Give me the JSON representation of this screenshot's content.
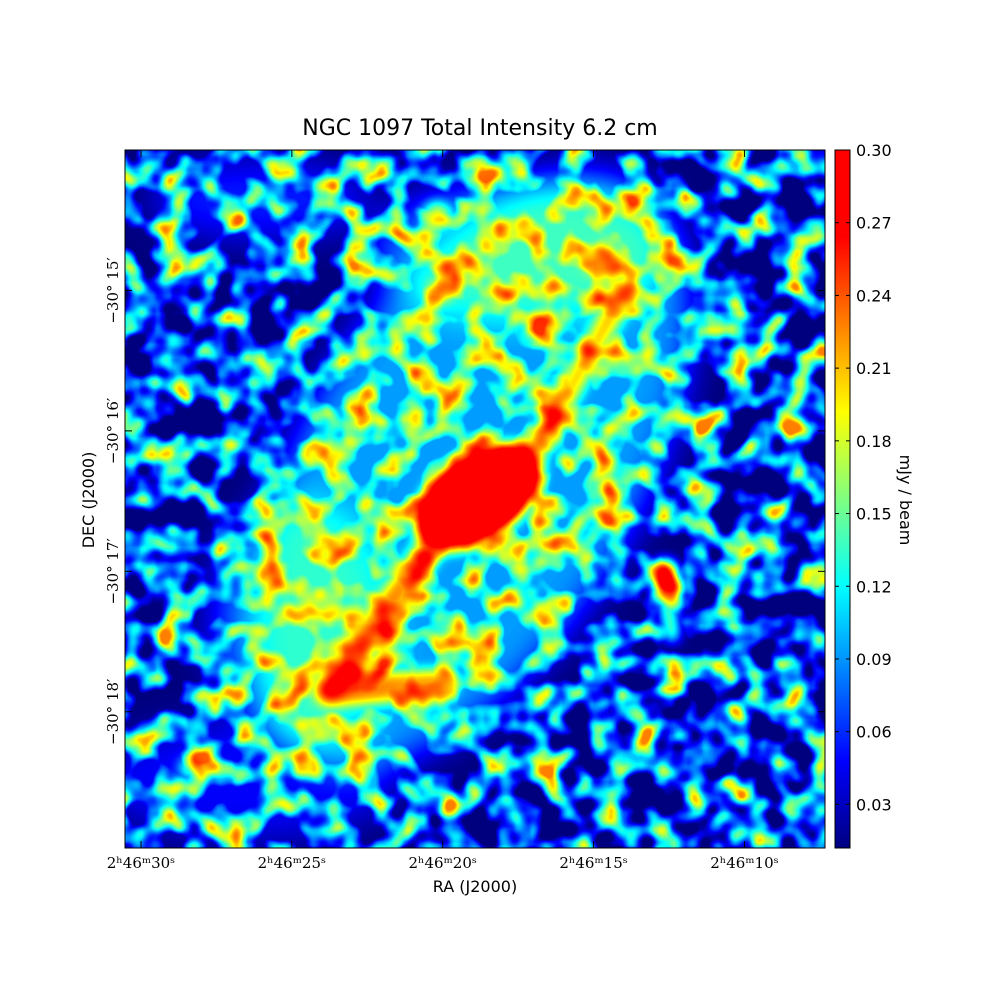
{
  "chart_data": {
    "type": "image",
    "title": "NGC 1097 Total Intensity 6.2 cm",
    "xlabel": "RA (J2000)",
    "ylabel": "DEC (J2000)",
    "xlim": [
      30.53,
      7.33
    ],
    "xticks": [
      {
        "value": 30,
        "label": "2ʰ46ᵐ30ˢ"
      },
      {
        "value": 25,
        "label": "2ʰ46ᵐ25ˢ"
      },
      {
        "value": 20,
        "label": "2ʰ46ᵐ20ˢ"
      },
      {
        "value": 15,
        "label": "2ʰ46ᵐ15ˢ"
      },
      {
        "value": 10,
        "label": "2ʰ46ᵐ10ˢ"
      }
    ],
    "ylim": [
      14.0,
      18.97
    ],
    "yticks": [
      {
        "value": 15,
        "label": "−30° 15′"
      },
      {
        "value": 16,
        "label": "−30° 16′"
      },
      {
        "value": 17,
        "label": "−30° 17′"
      },
      {
        "value": 18,
        "label": "−30° 18′"
      }
    ],
    "colormap": "jet",
    "colorbar": {
      "label": "mJy / beam",
      "lim": [
        0.012,
        0.3
      ],
      "ticks": [
        0.03,
        0.06,
        0.09,
        0.12,
        0.15,
        0.18,
        0.21,
        0.24,
        0.27,
        {
          "value": 0.3,
          "label": "0.30"
        }
      ]
    }
  }
}
